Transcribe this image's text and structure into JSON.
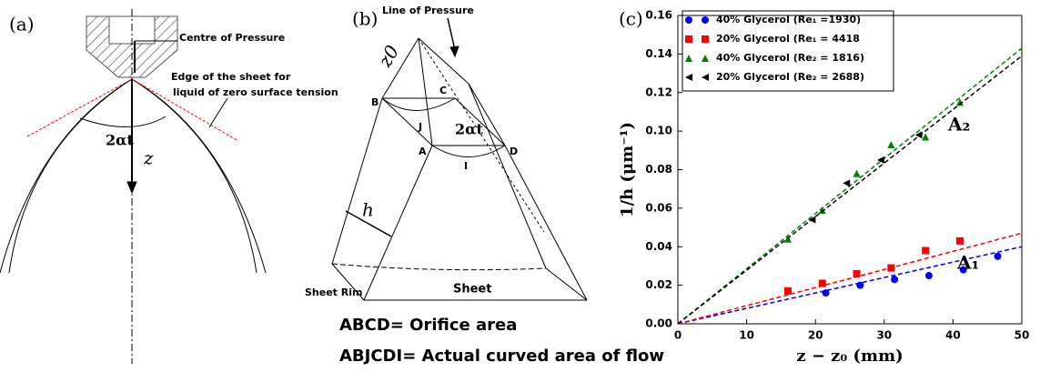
{
  "diagram_a": {
    "label": "(a)",
    "centre": "Centre of Pressure",
    "edge_1": "Edge of the sheet for",
    "edge_2": "liquid of zero surface tension",
    "angle": "2αt",
    "z": "z",
    "rim": "Sheet Rim"
  },
  "diagram_b": {
    "label": "(b)",
    "line": "Line  of Pressure",
    "z0": "z0",
    "B": "B",
    "C": "C",
    "J": "J",
    "angle": "2αt",
    "A": "A",
    "D": "D",
    "I": "I",
    "h": "h",
    "sheet": "Sheet"
  },
  "caption": [
    "ABCD= Orifice area",
    "ABJCDI= Actual curved area of flow"
  ],
  "chart_data": {
    "type": "scatter",
    "panel_label": "(c)",
    "xlabel": "z − z₀ (mm)",
    "ylabel": "1/h (μm⁻¹)",
    "xlim": [
      0,
      50
    ],
    "xticks": [
      0,
      10,
      20,
      30,
      40,
      50
    ],
    "ylim": [
      0,
      0.16
    ],
    "yticks": [
      {
        "value": 0,
        "label": "0.00"
      },
      {
        "value": 0.02,
        "label": "0.02"
      },
      {
        "value": 0.04,
        "label": "0.04"
      },
      {
        "value": 0.06,
        "label": "0.06"
      },
      {
        "value": 0.08,
        "label": "0.08"
      },
      {
        "value": 0.1,
        "label": "0.10"
      },
      {
        "value": 0.12,
        "label": "0.12"
      },
      {
        "value": 0.14,
        "label": "0.14"
      },
      {
        "value": 0.16,
        "label": "0.16"
      }
    ],
    "legend": "upper left",
    "series": [
      {
        "name": "40% Glycerol (Re₁ =1930)",
        "color": "#0000ff",
        "marker": "circle",
        "x": [
          21.5,
          26.5,
          31.5,
          36.5,
          41.5,
          46.5
        ],
        "values": [
          0.016,
          0.02,
          0.023,
          0.025,
          0.028,
          0.035
        ],
        "fit": {
          "x": [
            0,
            50
          ],
          "values": [
            0,
            0.04
          ]
        }
      },
      {
        "name": "20% Glycerol (Re₁ = 4418",
        "color": "#ff0000",
        "marker": "square",
        "x": [
          16,
          21,
          26,
          31,
          36,
          41
        ],
        "values": [
          0.017,
          0.021,
          0.026,
          0.029,
          0.038,
          0.043
        ],
        "fit": {
          "x": [
            0,
            50
          ],
          "values": [
            0,
            0.047
          ]
        }
      },
      {
        "name": "40% Glycerol (Re₂ = 1816)",
        "color": "#008000",
        "marker": "triangle-up",
        "x": [
          16,
          21,
          26,
          31,
          36,
          41
        ],
        "values": [
          0.044,
          0.059,
          0.078,
          0.093,
          0.097,
          0.115
        ],
        "fit": {
          "x": [
            0,
            50
          ],
          "values": [
            0,
            0.143
          ]
        }
      },
      {
        "name": "20% Glycerol (Re₂ = 2688)",
        "color": "#000000",
        "marker": "triangle-left",
        "x": [
          19.5,
          24.5,
          29.5,
          35
        ],
        "values": [
          0.054,
          0.073,
          0.085,
          0.098
        ],
        "fit": {
          "x": [
            0,
            50
          ],
          "values": [
            0,
            0.139
          ]
        }
      }
    ],
    "annotations": [
      "A₂",
      "A₁"
    ]
  }
}
